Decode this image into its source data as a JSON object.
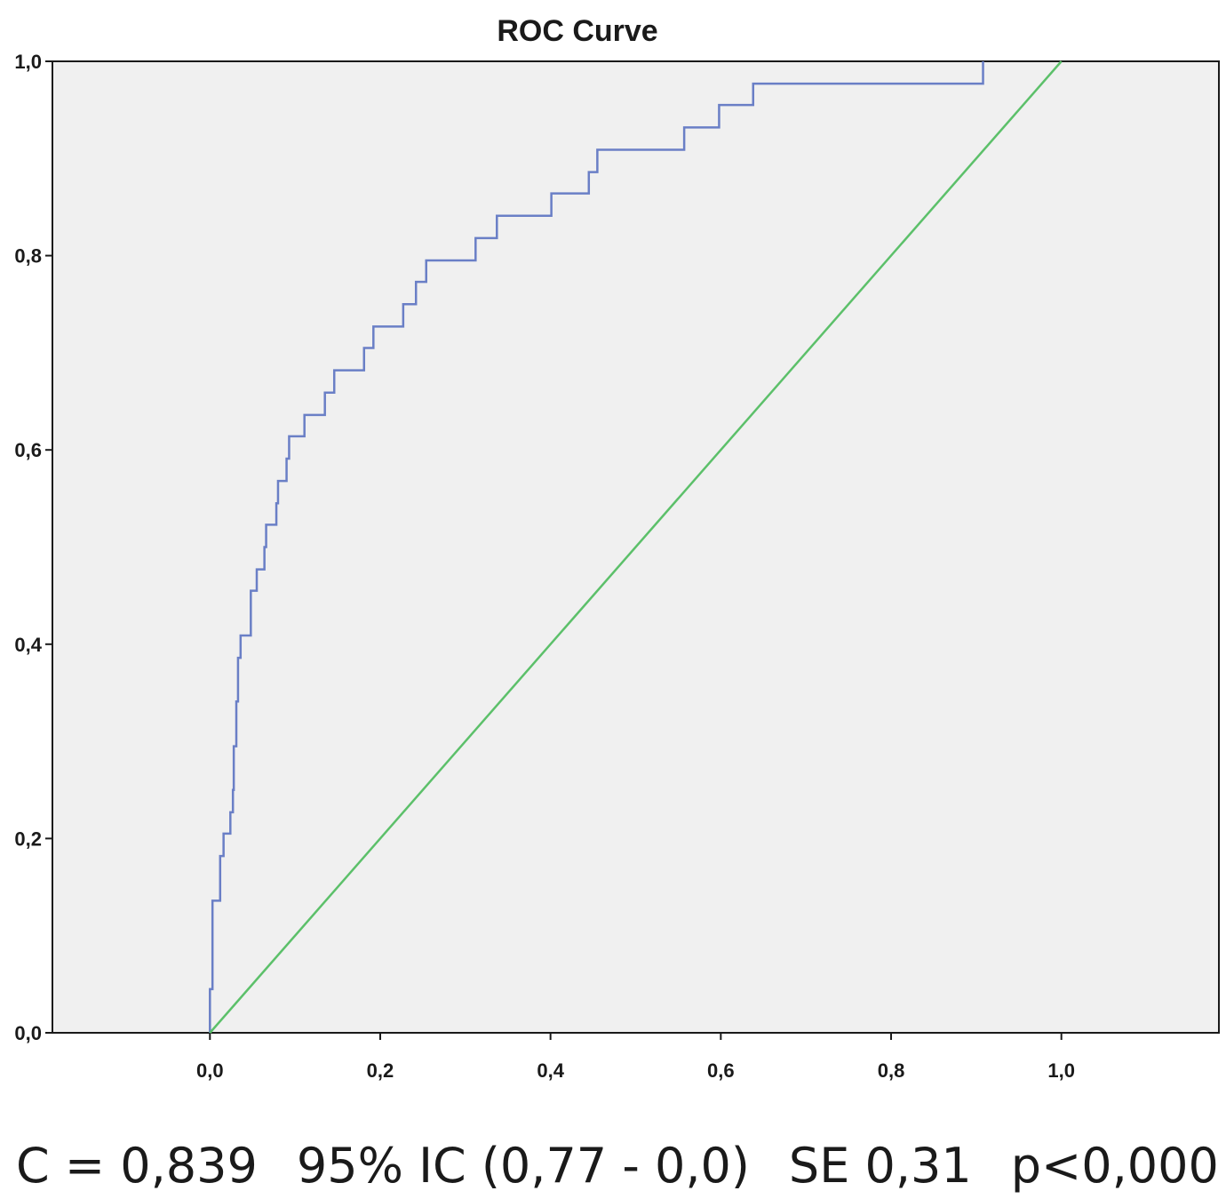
{
  "chart_data": {
    "type": "line",
    "title": "ROC Curve",
    "xlabel": "",
    "ylabel": "",
    "xlim": [
      -0.185,
      1.185
    ],
    "ylim": [
      0,
      1
    ],
    "x_ticks": [
      "0,0",
      "0,2",
      "0,4",
      "0,6",
      "0,8",
      "1,0"
    ],
    "x_tick_values": [
      0,
      0.2,
      0.4,
      0.6,
      0.8,
      1.0
    ],
    "y_ticks": [
      "0,0",
      "0,2",
      "0,4",
      "0,6",
      "0,8",
      "1,0"
    ],
    "y_tick_values": [
      0,
      0.2,
      0.4,
      0.6,
      0.8,
      1.0
    ],
    "grid": false,
    "background": "#f0f0f0",
    "series": [
      {
        "color": "#6a7fc6",
        "step": true,
        "points": [
          [
            0.0,
            0.0
          ],
          [
            0.0,
            0.045
          ],
          [
            0.003,
            0.045
          ],
          [
            0.003,
            0.136
          ],
          [
            0.012,
            0.136
          ],
          [
            0.012,
            0.182
          ],
          [
            0.016,
            0.182
          ],
          [
            0.016,
            0.205
          ],
          [
            0.024,
            0.205
          ],
          [
            0.024,
            0.227
          ],
          [
            0.027,
            0.227
          ],
          [
            0.027,
            0.25
          ],
          [
            0.028,
            0.25
          ],
          [
            0.028,
            0.295
          ],
          [
            0.031,
            0.295
          ],
          [
            0.031,
            0.341
          ],
          [
            0.033,
            0.341
          ],
          [
            0.033,
            0.386
          ],
          [
            0.036,
            0.386
          ],
          [
            0.036,
            0.409
          ],
          [
            0.048,
            0.409
          ],
          [
            0.048,
            0.455
          ],
          [
            0.055,
            0.455
          ],
          [
            0.055,
            0.477
          ],
          [
            0.064,
            0.477
          ],
          [
            0.064,
            0.5
          ],
          [
            0.066,
            0.5
          ],
          [
            0.066,
            0.523
          ],
          [
            0.078,
            0.523
          ],
          [
            0.078,
            0.545
          ],
          [
            0.08,
            0.545
          ],
          [
            0.08,
            0.568
          ],
          [
            0.09,
            0.568
          ],
          [
            0.09,
            0.591
          ],
          [
            0.093,
            0.591
          ],
          [
            0.093,
            0.614
          ],
          [
            0.111,
            0.614
          ],
          [
            0.111,
            0.636
          ],
          [
            0.135,
            0.636
          ],
          [
            0.135,
            0.659
          ],
          [
            0.146,
            0.659
          ],
          [
            0.146,
            0.682
          ],
          [
            0.181,
            0.682
          ],
          [
            0.181,
            0.705
          ],
          [
            0.192,
            0.705
          ],
          [
            0.192,
            0.727
          ],
          [
            0.227,
            0.727
          ],
          [
            0.227,
            0.75
          ],
          [
            0.242,
            0.75
          ],
          [
            0.242,
            0.773
          ],
          [
            0.254,
            0.773
          ],
          [
            0.254,
            0.795
          ],
          [
            0.312,
            0.795
          ],
          [
            0.312,
            0.818
          ],
          [
            0.337,
            0.818
          ],
          [
            0.337,
            0.841
          ],
          [
            0.401,
            0.841
          ],
          [
            0.401,
            0.864
          ],
          [
            0.445,
            0.864
          ],
          [
            0.445,
            0.886
          ],
          [
            0.455,
            0.886
          ],
          [
            0.455,
            0.909
          ],
          [
            0.557,
            0.909
          ],
          [
            0.557,
            0.932
          ],
          [
            0.598,
            0.932
          ],
          [
            0.598,
            0.955
          ],
          [
            0.638,
            0.955
          ],
          [
            0.638,
            0.977
          ],
          [
            0.908,
            0.977
          ],
          [
            0.908,
            1.0
          ]
        ]
      },
      {
        "color": "#5cc06a",
        "step": false,
        "points": [
          [
            0.0,
            0.0
          ],
          [
            1.0,
            1.0
          ]
        ]
      }
    ]
  },
  "footer": {
    "c": "C = 0,839",
    "ci": "95% IC (0,77 - 0,0)",
    "se": "SE 0,31",
    "p": "p<0,000"
  }
}
